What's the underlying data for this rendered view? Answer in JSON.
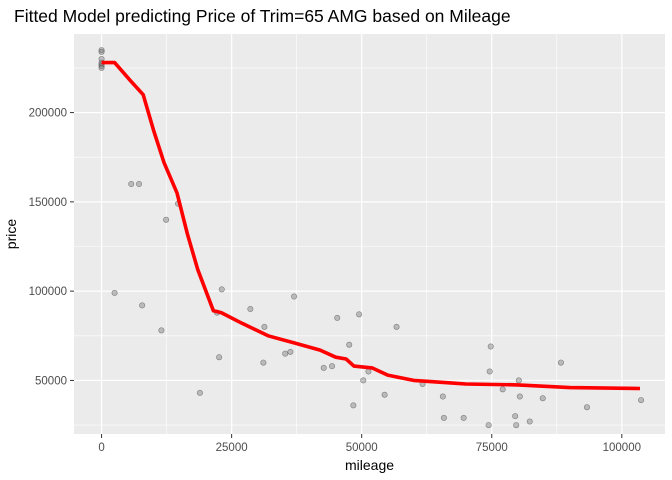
{
  "chart_data": {
    "type": "scatter",
    "title": "Fitted Model predicting Price of Trim=65 AMG based on Mileage",
    "xlabel": "mileage",
    "ylabel": "price",
    "xlim": [
      -5300,
      108300
    ],
    "ylim": [
      20000,
      244000
    ],
    "x_ticks": [
      0,
      25000,
      50000,
      75000,
      100000
    ],
    "x_tick_labels": [
      "0",
      "25000",
      "50000",
      "75000",
      "100000"
    ],
    "y_ticks": [
      50000,
      100000,
      150000,
      200000
    ],
    "y_tick_labels": [
      "50000",
      "100000",
      "150000",
      "200000"
    ],
    "grid": true,
    "legend": "none",
    "colors": {
      "panel": "#ebebeb",
      "grid": "#ffffff",
      "points": "#7f7f7f",
      "fit_line": "#ff0000"
    },
    "series": [
      {
        "kind": "points",
        "points": [
          [
            0,
            235000
          ],
          [
            0,
            234000
          ],
          [
            0,
            230000
          ],
          [
            0,
            228000
          ],
          [
            0,
            227000
          ],
          [
            0,
            226000
          ],
          [
            0,
            225000
          ],
          [
            2500,
            99000
          ],
          [
            5700,
            160000
          ],
          [
            7200,
            160000
          ],
          [
            7800,
            92000
          ],
          [
            11500,
            78000
          ],
          [
            12400,
            140000
          ],
          [
            14700,
            149000
          ],
          [
            18900,
            43000
          ],
          [
            22200,
            88000
          ],
          [
            22600,
            63000
          ],
          [
            23100,
            101000
          ],
          [
            28600,
            90000
          ],
          [
            31100,
            60000
          ],
          [
            31300,
            80000
          ],
          [
            35300,
            65000
          ],
          [
            36300,
            66000
          ],
          [
            37000,
            97000
          ],
          [
            42700,
            57000
          ],
          [
            44300,
            58000
          ],
          [
            45300,
            85000
          ],
          [
            47600,
            70000
          ],
          [
            48400,
            36000
          ],
          [
            49500,
            87000
          ],
          [
            50300,
            50000
          ],
          [
            51300,
            55000
          ],
          [
            54400,
            42000
          ],
          [
            56700,
            80000
          ],
          [
            61700,
            48000
          ],
          [
            65600,
            41000
          ],
          [
            65800,
            29000
          ],
          [
            69600,
            29000
          ],
          [
            74400,
            25000
          ],
          [
            74600,
            55000
          ],
          [
            74800,
            69000
          ],
          [
            77100,
            45000
          ],
          [
            79500,
            30000
          ],
          [
            79700,
            25000
          ],
          [
            80200,
            50000
          ],
          [
            80400,
            41000
          ],
          [
            82300,
            27000
          ],
          [
            84800,
            40000
          ],
          [
            88300,
            60000
          ],
          [
            93300,
            35000
          ],
          [
            103700,
            39000
          ]
        ]
      },
      {
        "kind": "fitted-line",
        "points": [
          [
            0,
            228000
          ],
          [
            2500,
            228000
          ],
          [
            5500,
            218000
          ],
          [
            8000,
            210000
          ],
          [
            10000,
            190000
          ],
          [
            12000,
            172000
          ],
          [
            14500,
            155000
          ],
          [
            16500,
            132000
          ],
          [
            18500,
            112000
          ],
          [
            21500,
            89000
          ],
          [
            23000,
            88000
          ],
          [
            27000,
            82000
          ],
          [
            32000,
            75000
          ],
          [
            37000,
            71000
          ],
          [
            42000,
            67000
          ],
          [
            45000,
            63000
          ],
          [
            47000,
            62000
          ],
          [
            48500,
            58000
          ],
          [
            52000,
            57000
          ],
          [
            55000,
            53000
          ],
          [
            60000,
            50000
          ],
          [
            65000,
            49000
          ],
          [
            70000,
            48000
          ],
          [
            80000,
            47500
          ],
          [
            90000,
            46000
          ],
          [
            103500,
            45500
          ]
        ]
      }
    ]
  }
}
